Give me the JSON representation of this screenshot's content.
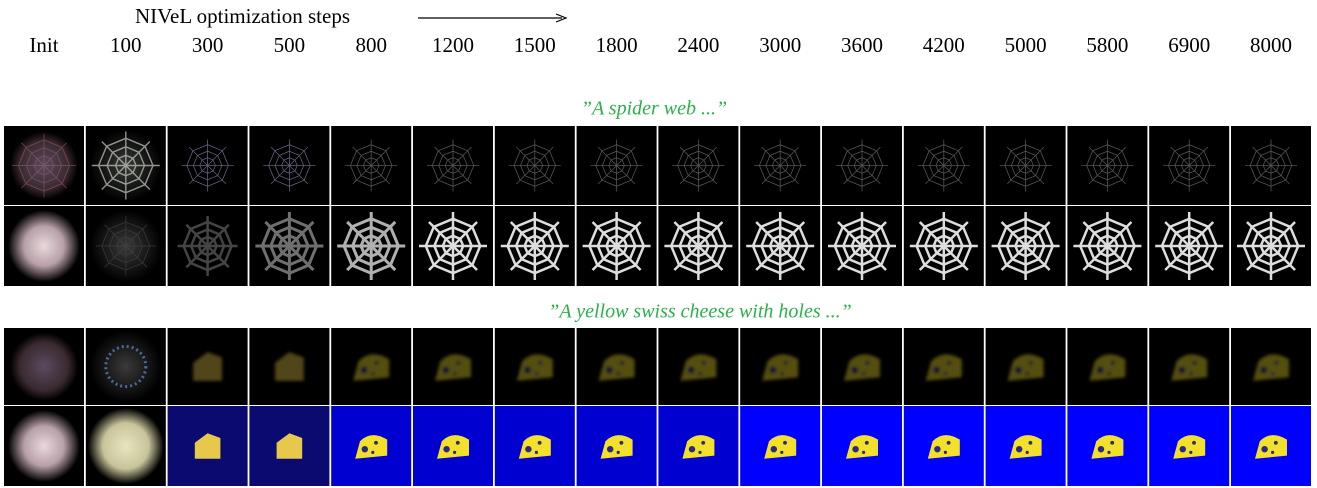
{
  "header": {
    "title": "NIVeL optimization steps"
  },
  "columns": [
    "Init",
    "100",
    "300",
    "500",
    "800",
    "1200",
    "1500",
    "1800",
    "2400",
    "3000",
    "3600",
    "4200",
    "5000",
    "5800",
    "6900",
    "8000"
  ],
  "sections": [
    {
      "caption": "”A spider web ...”"
    },
    {
      "caption": "”A yellow swiss cheese with holes ...”"
    }
  ]
}
